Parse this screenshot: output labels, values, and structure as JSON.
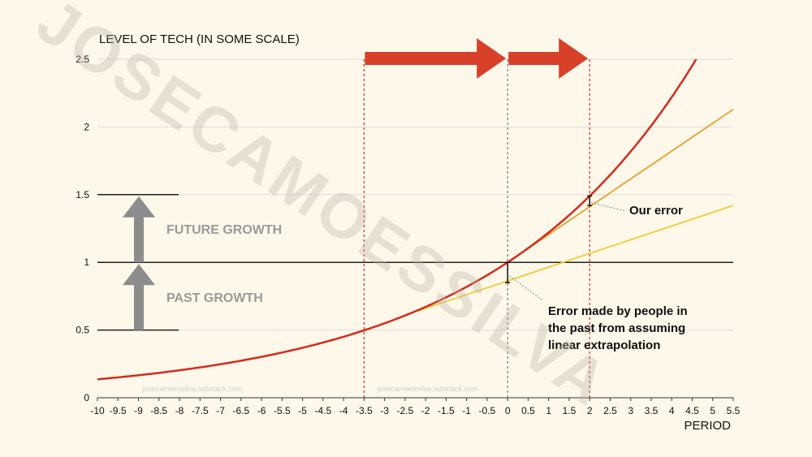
{
  "watermark": {
    "main": "JOSECAMOESSILVA",
    "small_left": "josecamoessilva.substack.com",
    "small_center": "josecamoessilva.substack.com"
  },
  "chart_data": {
    "type": "line",
    "title": "",
    "xlabel": "PERIOD",
    "ylabel": "LEVEL OF TECH (IN SOME SCALE)",
    "xlim": [
      -10,
      5.5
    ],
    "ylim": [
      0,
      2.5
    ],
    "x_ticks": [
      "-10",
      "-9.5",
      "-9",
      "-8.5",
      "-8",
      "-7.5",
      "-7",
      "-6.5",
      "-6",
      "-5.5",
      "-5",
      "-4.5",
      "-4",
      "-3.5",
      "-3",
      "-2.5",
      "-2",
      "-1.5",
      "-1",
      "-0.5",
      "0",
      "0.5",
      "1",
      "1.5",
      "2",
      "2.5",
      "3",
      "3.5",
      "4",
      "4.5",
      "5",
      "5.5"
    ],
    "y_ticks": [
      "0",
      "0.5",
      "1",
      "1.5",
      "2",
      "2.5"
    ],
    "grid": true,
    "series": [
      {
        "color": "#d62a1e",
        "kind": "exponential",
        "x": [
          -10,
          -9,
          -8,
          -7,
          -6,
          -5,
          -4,
          -3.5,
          -3,
          -2,
          -1,
          0,
          1,
          2,
          3,
          4,
          4.6
        ],
        "y": [
          0.137,
          0.16,
          0.19,
          0.222,
          0.26,
          0.305,
          0.36,
          0.5,
          0.543,
          0.66,
          0.812,
          1.0,
          1.22,
          1.49,
          1.82,
          2.23,
          2.5
        ]
      },
      {
        "color": "#e8a030",
        "kind": "linear-from-0",
        "x": [
          0,
          5.5
        ],
        "y": [
          1.0,
          2.13
        ]
      },
      {
        "color": "#f1cc3a",
        "kind": "linear-from-minus-3.5",
        "x": [
          -2.5,
          5.5
        ],
        "y": [
          0.61,
          1.42
        ]
      }
    ],
    "reference_lines": {
      "horizontal": [
        1
      ],
      "vertical_dotted": [
        {
          "x": -3.5,
          "color": "#d62a1e"
        },
        {
          "x": 0,
          "color": "#777777"
        },
        {
          "x": 2,
          "color": "#d62a1e"
        }
      ]
    },
    "annotations": {
      "future_growth": "FUTURE GROWTH",
      "past_growth": "PAST GROWTH",
      "our_error": "Our error",
      "past_error": [
        "Error made by people in",
        "the past from assuming",
        "linear extrapolation"
      ]
    },
    "arrows": [
      {
        "from": -3.5,
        "to": 0,
        "color": "#d9402a"
      },
      {
        "from": 0,
        "to": 2,
        "color": "#d9402a"
      }
    ]
  }
}
